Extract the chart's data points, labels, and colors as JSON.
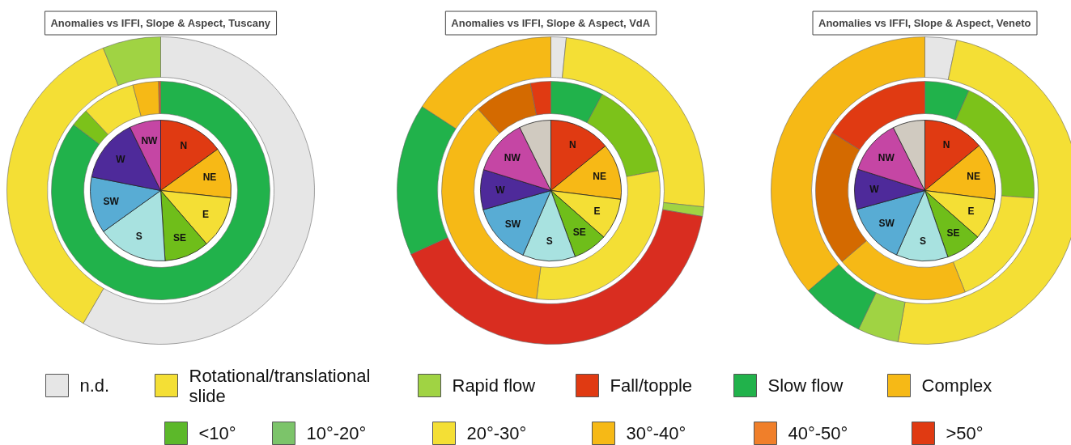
{
  "chart_data": [
    {
      "type": "donut",
      "title": "Anomalies vs IFFI, Slope & Aspect, Tuscany",
      "series": [
        {
          "type": "pie",
          "value_labels": [
            "N",
            "NE",
            "E",
            "SE",
            "S",
            "SW",
            "W",
            "NW"
          ],
          "values": [
            15,
            11.7,
            12,
            10.3,
            16.1,
            13,
            14.7,
            7.2
          ],
          "colors": [
            "#e03a12",
            "#f7b916",
            "#f4df35",
            "#6fbe1a",
            "#a8e2e0",
            "#58acd4",
            "#4e2a9a",
            "#c546a4"
          ]
        },
        {
          "values": [
            85.3,
            2.7,
            7.9,
            3.8,
            0.3
          ],
          "colors": [
            "#21b24b",
            "#7cc21a",
            "#f4df35",
            "#f6b916",
            "#e0601a"
          ]
        },
        {
          "values": [
            58.4,
            35.5,
            6.1
          ],
          "colors": [
            "#e6e6e6",
            "#f4df35",
            "#a0d343"
          ]
        }
      ]
    },
    {
      "type": "donut",
      "title": "Anomalies vs IFFI, Slope & Aspect, VdA",
      "series": [
        {
          "type": "pie",
          "value_labels": [
            "N",
            "NE",
            "E",
            "SE",
            "S",
            "SW",
            "W",
            "NW",
            null
          ],
          "values": [
            14.1,
            12.9,
            9.5,
            7.9,
            12.1,
            14.1,
            9.2,
            12.9,
            7.3
          ],
          "colors": [
            "#e03a12",
            "#f7b916",
            "#f4df35",
            "#6fbe1a",
            "#a8e2e0",
            "#58acd4",
            "#4e2a9a",
            "#c546a4",
            "#d0cac0"
          ]
        },
        {
          "values": [
            7.8,
            14.3,
            30.0,
            36.3,
            8.6,
            3.0
          ],
          "colors": [
            "#21b24b",
            "#7cc21a",
            "#f4df35",
            "#f6b916",
            "#d46a00",
            "#e03a12"
          ]
        },
        {
          "values": [
            1.6,
            25.1,
            1.0,
            40.5,
            16.0,
            15.8
          ],
          "colors": [
            "#e6e6e6",
            "#f4df35",
            "#a0d343",
            "#d92d20",
            "#21b24b",
            "#f6b916"
          ]
        }
      ]
    },
    {
      "type": "donut",
      "title": "Anomalies vs IFFI, Slope & Aspect, Veneto",
      "series": [
        {
          "type": "pie",
          "value_labels": [
            "N",
            "NE",
            "E",
            "SE",
            "S",
            "SW",
            "W",
            "NW",
            null
          ],
          "values": [
            14.0,
            13.0,
            9.5,
            8.2,
            11.9,
            14.1,
            9.2,
            12.7,
            7.4
          ],
          "colors": [
            "#e03a12",
            "#f7b916",
            "#f4df35",
            "#6fbe1a",
            "#a8e2e0",
            "#58acd4",
            "#4e2a9a",
            "#c546a4",
            "#d0cac0"
          ]
        },
        {
          "values": [
            6.6,
            19.5,
            17.9,
            19.7,
            20.2,
            16.1
          ],
          "colors": [
            "#21b24b",
            "#7cc21a",
            "#f4df35",
            "#f6b916",
            "#d46a00",
            "#e03a12"
          ]
        },
        {
          "values": [
            3.3,
            49.5,
            4.3,
            6.6,
            36.3
          ],
          "colors": [
            "#e6e6e6",
            "#f4df35",
            "#a0d343",
            "#21b24b",
            "#f6b916"
          ]
        }
      ]
    },
    {
      "type": "other",
      "categories": [
        "n.d.",
        "Rotational/translational slide",
        "Rapid flow",
        "Fall/topple",
        "Slow flow",
        "Complex",
        "<10°",
        "10°-20°",
        "20°-30°",
        "30°-40°",
        "40°-50°",
        ">50°"
      ],
      "colors": [
        "#e6e6e6",
        "#f4df35",
        "#a0d343",
        "#e03a12",
        "#21b24b",
        "#f6b916",
        "#5cb82a",
        "#7cc46a",
        "#f4df35",
        "#f6b916",
        "#f07f2a",
        "#e03a12"
      ]
    }
  ]
}
